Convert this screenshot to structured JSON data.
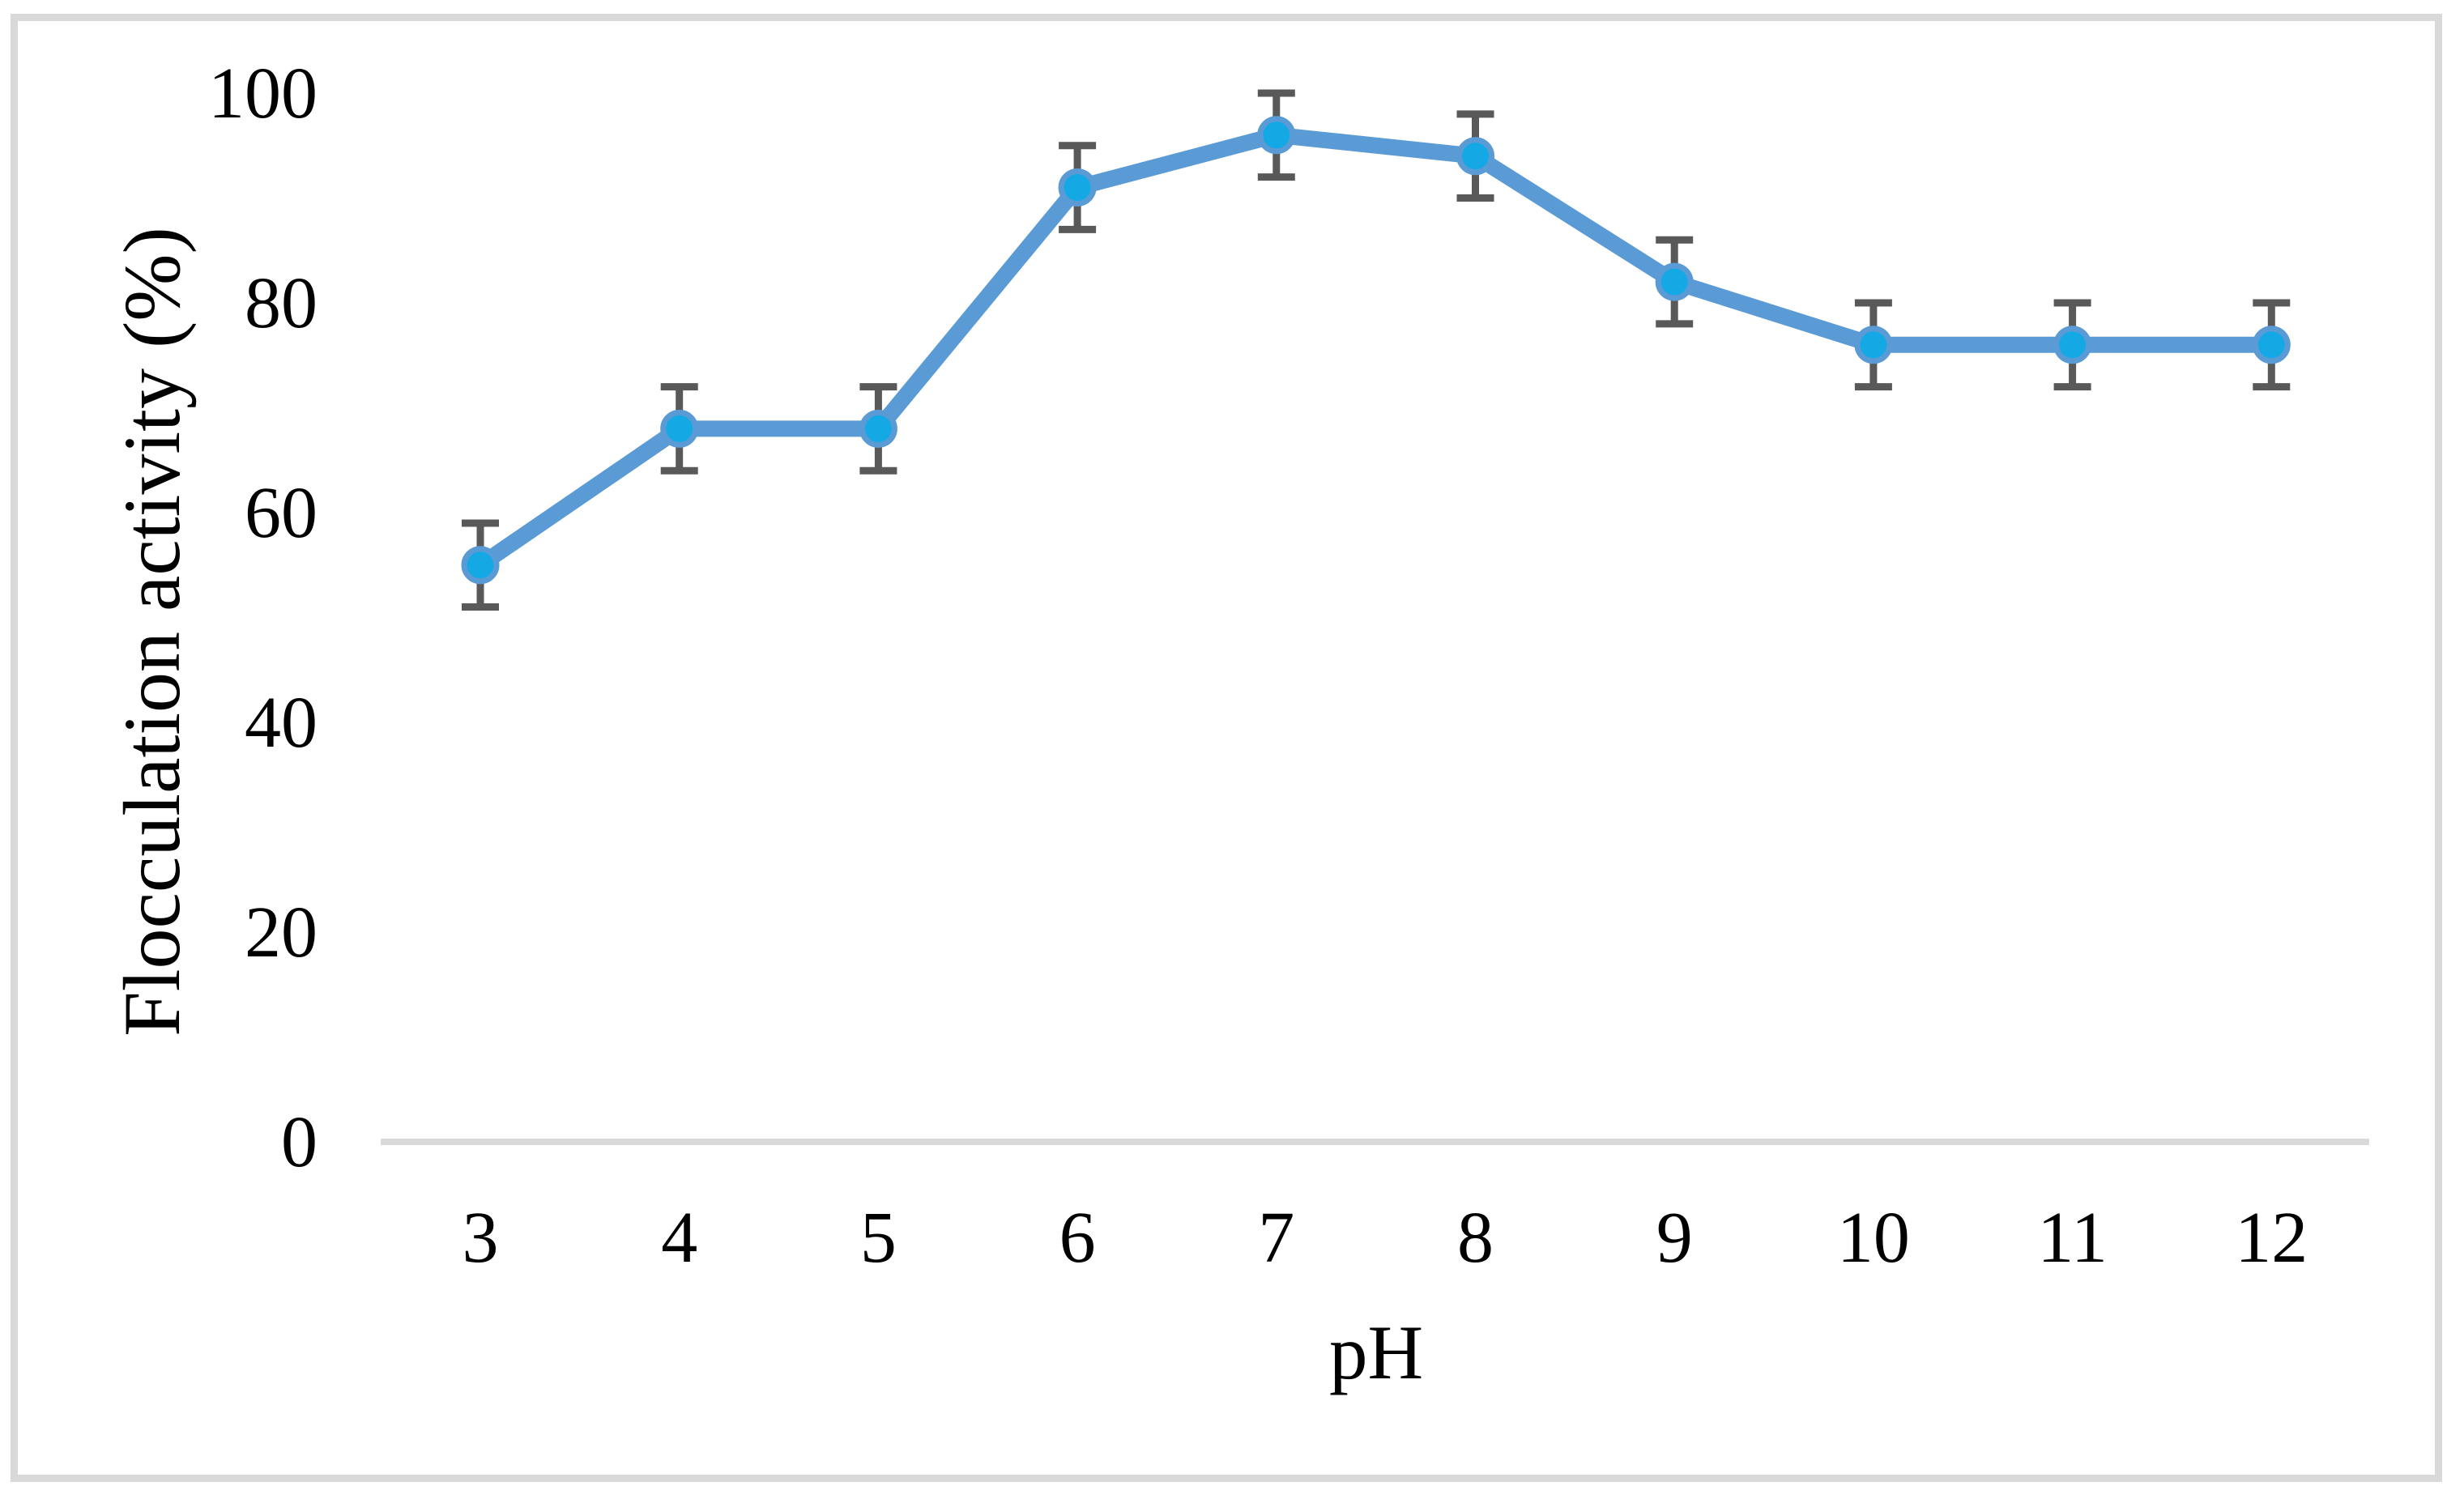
{
  "chart_data": {
    "type": "line",
    "title": "",
    "xlabel": "pH",
    "ylabel": "Flocculation activity (%)",
    "categories": [
      "3",
      "4",
      "5",
      "6",
      "7",
      "8",
      "9",
      "10",
      "11",
      "12"
    ],
    "series": [
      {
        "name": "Flocculation activity",
        "values": [
          55,
          68,
          68,
          91,
          96,
          94,
          82,
          76,
          76,
          76
        ],
        "error": [
          4,
          4,
          4,
          4,
          4,
          4,
          4,
          4,
          4,
          4
        ]
      }
    ],
    "ylim": [
      0,
      100
    ],
    "yticks": [
      0,
      20,
      40,
      60,
      80,
      100
    ],
    "grid": false,
    "legend": "none",
    "marker_shape": "circle",
    "colors": {
      "line": "#5B9BD5",
      "marker_fill": "#14A9E5",
      "marker_ring": "#5B9BD5",
      "error_bar": "#595959",
      "axis_line": "#D9D9D9",
      "tick_text": "#000000",
      "frame_border": "#D9D9D9",
      "background": "#FFFFFF"
    }
  }
}
